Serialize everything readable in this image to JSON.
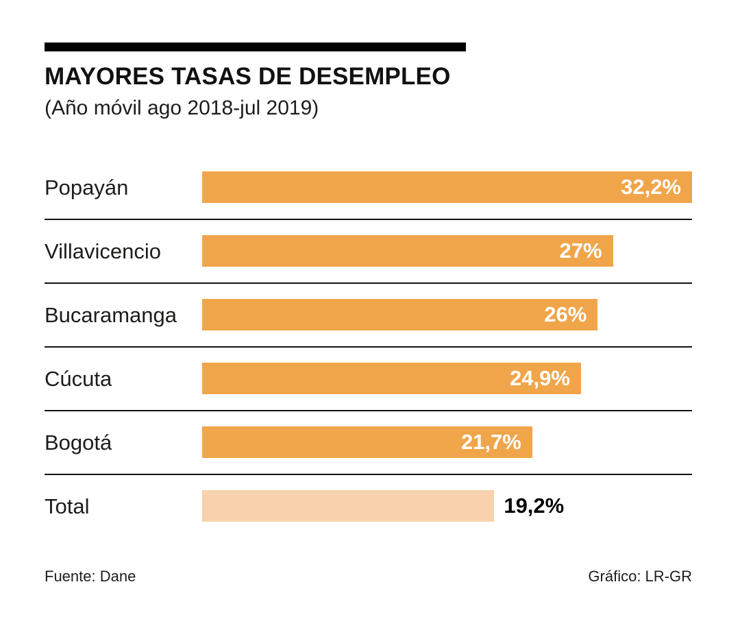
{
  "chart": {
    "title": "MAYORES TASAS DE DESEMPLEO",
    "subtitle": "(Año móvil ago 2018-jul 2019)"
  },
  "chart_data": {
    "type": "bar",
    "orientation": "horizontal",
    "title": "MAYORES TASAS DE DESEMPLEO",
    "subtitle": "(Año móvil ago 2018-jul 2019)",
    "xlabel": "",
    "ylabel": "",
    "xmax": 32.2,
    "grid": false,
    "legend": false,
    "categories": [
      "Popayán",
      "Villavicencio",
      "Bucaramanga",
      "Cúcuta",
      "Bogotá",
      "Total"
    ],
    "values": [
      32.2,
      27,
      26,
      24.9,
      21.7,
      19.2
    ],
    "colors": {
      "bar": "#F0A54A",
      "total_bar": "#F8D2AD",
      "value_inside": "#FFFFFF",
      "value_outside": "#000000"
    },
    "rows": [
      {
        "label": "Popayán",
        "value": 32.2,
        "value_label": "32,2%",
        "color": "#F0A54A",
        "label_position": "inside"
      },
      {
        "label": "Villavicencio",
        "value": 27,
        "value_label": "27%",
        "color": "#F0A54A",
        "label_position": "inside"
      },
      {
        "label": "Bucaramanga",
        "value": 26,
        "value_label": "26%",
        "color": "#F0A54A",
        "label_position": "inside"
      },
      {
        "label": "Cúcuta",
        "value": 24.9,
        "value_label": "24,9%",
        "color": "#F0A54A",
        "label_position": "inside"
      },
      {
        "label": "Bogotá",
        "value": 21.7,
        "value_label": "21,7%",
        "color": "#F0A54A",
        "label_position": "inside"
      },
      {
        "label": "Total",
        "value": 19.2,
        "value_label": "19,2%",
        "color": "#F8D2AD",
        "label_position": "outside"
      }
    ]
  },
  "footer": {
    "source": "Fuente: Dane",
    "credit": "Gráfico: LR-GR"
  }
}
